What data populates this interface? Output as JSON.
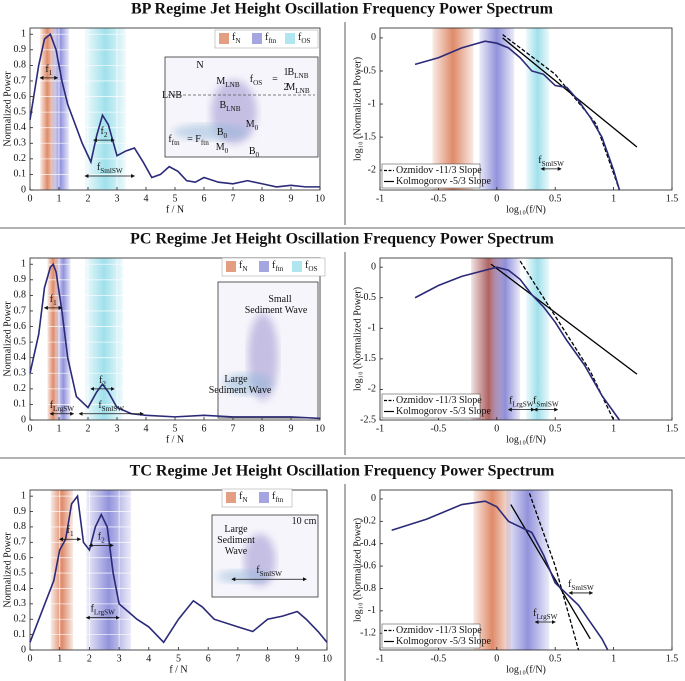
{
  "chart_data": [
    {
      "type": "line",
      "title": "BP Regime Jet Height Oscillation Frequency Power Spectrum",
      "xlabel": "f / N",
      "ylabel": "Normalized Power",
      "xlim": [
        0,
        10
      ],
      "ylim": [
        0,
        1.04
      ],
      "xticks": [
        0,
        1,
        2,
        3,
        4,
        5,
        6,
        7,
        8,
        9,
        10
      ],
      "yticks": [
        0,
        0.1,
        0.2,
        0.3,
        0.4,
        0.5,
        0.6,
        0.7,
        0.8,
        0.9,
        1
      ],
      "grid": true,
      "color": "#2b2a78",
      "x": [
        0,
        0.3,
        0.5,
        0.7,
        0.9,
        1.1,
        1.3,
        1.5,
        1.8,
        2.1,
        2.3,
        2.5,
        2.7,
        3.0,
        3.3,
        3.6,
        3.9,
        4.2,
        4.5,
        4.8,
        5.1,
        5.4,
        5.7,
        6,
        6.5,
        7,
        7.5,
        8,
        8.5,
        9,
        9.5,
        10
      ],
      "values": [
        0.45,
        0.8,
        0.97,
        1.0,
        0.9,
        0.7,
        0.55,
        0.45,
        0.3,
        0.18,
        0.35,
        0.48,
        0.42,
        0.22,
        0.25,
        0.27,
        0.18,
        0.08,
        0.1,
        0.15,
        0.12,
        0.06,
        0.05,
        0.08,
        0.05,
        0.04,
        0.06,
        0.04,
        0.02,
        0.03,
        0.02,
        0.02
      ],
      "bands": [
        {
          "label": "f",
          "sub": "N",
          "color": "#d9764f",
          "range": [
            0.35,
            0.85
          ]
        },
        {
          "label": "f",
          "sub": "ftn",
          "color": "#7f7fd6",
          "range": [
            0.75,
            1.35
          ]
        },
        {
          "label": "f",
          "sub": "OS",
          "color": "#8fdbe8",
          "range": [
            1.9,
            3.3
          ]
        }
      ],
      "annotations": [
        {
          "text": "f",
          "sub": "1",
          "range": [
            0.35,
            0.95
          ],
          "y": 0.72
        },
        {
          "text": "f",
          "sub": "2",
          "range": [
            2.2,
            2.9
          ],
          "y": 0.32
        },
        {
          "text": "f",
          "sub": "SmlSW",
          "range": [
            1.9,
            3.6
          ],
          "y": 0.09
        }
      ],
      "inset": [
        {
          "text": "N"
        },
        {
          "text": "LNB"
        },
        {
          "text": "M",
          "sub": "LNB"
        },
        {
          "text": "B",
          "sub": "LNB"
        },
        {
          "text": "f",
          "sub": "OS"
        },
        {
          "text": "="
        },
        {
          "text": "1"
        },
        {
          "text": "2"
        },
        {
          "text": "B",
          "sub": "LNB"
        },
        {
          "text": "M",
          "sub": "LNB"
        },
        {
          "text": "f",
          "sub": "ftn"
        },
        {
          "text": "= F",
          "sub": "ftn"
        },
        {
          "text": "B",
          "sub": "0"
        },
        {
          "text": "M",
          "sub": "0"
        },
        {
          "text": "M",
          "sub": "0"
        },
        {
          "text": "B",
          "sub": "0"
        }
      ]
    },
    {
      "type": "line",
      "xlabel": "log₁₀(f/N)",
      "ylabel": "log₁₀ (Normalized Power)",
      "xlim": [
        -1,
        1.5
      ],
      "ylim": [
        -2.3,
        0.15
      ],
      "xticks": [
        -1,
        -0.5,
        0,
        0.5,
        1,
        1.5
      ],
      "yticks": [
        -2,
        -1.5,
        -1,
        -0.5,
        0
      ],
      "grid": false,
      "color": "#2b2a78",
      "x": [
        -0.7,
        -0.5,
        -0.3,
        -0.1,
        0,
        0.1,
        0.2,
        0.3,
        0.4,
        0.5,
        0.6,
        0.7,
        0.8,
        0.9,
        1.0,
        1.05
      ],
      "values": [
        -0.4,
        -0.3,
        -0.15,
        -0.05,
        -0.08,
        -0.15,
        -0.3,
        -0.5,
        -0.55,
        -0.72,
        -0.75,
        -0.95,
        -1.2,
        -1.5,
        -2.0,
        -2.3
      ],
      "bands": [
        {
          "color": "#d9764f",
          "range": [
            -0.55,
            -0.2
          ]
        },
        {
          "color": "#7f7fd6",
          "range": [
            -0.15,
            0.15
          ]
        },
        {
          "color": "#8fdbe8",
          "range": [
            0.25,
            0.45
          ]
        }
      ],
      "series": [
        {
          "name": "Ozmidov -11/3 Slope",
          "color": "#000000",
          "dash": true,
          "x": [
            0.05,
            0.5,
            0.85,
            1.05
          ],
          "values": [
            0.05,
            -0.55,
            -1.3,
            -2.3
          ]
        },
        {
          "name": "Kolmogorov -5/3 Slope",
          "color": "#000000",
          "dash": false,
          "x": [
            0.05,
            1.2
          ],
          "values": [
            0,
            -1.65
          ]
        }
      ],
      "legend": "lower left",
      "annotations": [
        {
          "text": "f",
          "sub": "SmlSW",
          "range": [
            0.38,
            0.55
          ],
          "y": -1.98
        }
      ]
    },
    {
      "type": "line",
      "title": "PC Regime Jet Height Oscillation Frequency Power Spectrum",
      "xlabel": "f / N",
      "ylabel": "Normalized Power",
      "xlim": [
        0,
        10
      ],
      "ylim": [
        0,
        1.04
      ],
      "xticks": [
        0,
        1,
        2,
        3,
        4,
        5,
        6,
        7,
        8,
        9,
        10
      ],
      "yticks": [
        0,
        0.1,
        0.2,
        0.3,
        0.4,
        0.5,
        0.6,
        0.7,
        0.8,
        0.9,
        1
      ],
      "grid": true,
      "color": "#2b2a78",
      "x": [
        0,
        0.3,
        0.5,
        0.7,
        0.8,
        0.9,
        1.1,
        1.3,
        1.6,
        2.0,
        2.3,
        2.5,
        2.7,
        3.0,
        3.5,
        4,
        5,
        6,
        7,
        8,
        9,
        10
      ],
      "values": [
        0.3,
        0.55,
        0.85,
        0.98,
        1.0,
        0.95,
        0.7,
        0.4,
        0.15,
        0.08,
        0.18,
        0.23,
        0.18,
        0.08,
        0.04,
        0.03,
        0.02,
        0.03,
        0.02,
        0.02,
        0.02,
        0.01
      ],
      "bands": [
        {
          "label": "f",
          "sub": "N",
          "color": "#d9764f",
          "range": [
            0.6,
            1.0
          ]
        },
        {
          "label": "f",
          "sub": "ftn",
          "color": "#7f7fd6",
          "range": [
            0.9,
            1.4
          ]
        },
        {
          "label": "f",
          "sub": "OS",
          "color": "#8fdbe8",
          "range": [
            1.9,
            3.2
          ]
        }
      ],
      "annotations": [
        {
          "text": "f",
          "sub": "1",
          "range": [
            0.5,
            1.1
          ],
          "y": 0.72
        },
        {
          "text": "f",
          "sub": "2",
          "range": [
            2.1,
            2.9
          ],
          "y": 0.2
        },
        {
          "text": "f",
          "sub": "LrgSW",
          "range": [
            0.7,
            1.5
          ],
          "y": 0.04
        },
        {
          "text": "f",
          "sub": "SmlSW",
          "range": [
            1.7,
            3.9
          ],
          "y": 0.04
        }
      ],
      "inset": [
        {
          "text": "Small"
        },
        {
          "text": "Sediment Wave"
        },
        {
          "text": "Large"
        },
        {
          "text": "Sediment Wave"
        }
      ]
    },
    {
      "type": "line",
      "xlabel": "log₁₀(f/N)",
      "ylabel": "log₁₀ (Normalized Power)",
      "xlim": [
        -1,
        1.5
      ],
      "ylim": [
        -2.5,
        0.15
      ],
      "xticks": [
        -1,
        -0.5,
        0,
        0.5,
        1,
        1.5
      ],
      "yticks": [
        -2.5,
        -2,
        -1.5,
        -1,
        -0.5,
        0
      ],
      "grid": false,
      "color": "#2b2a78",
      "x": [
        -0.7,
        -0.5,
        -0.3,
        -0.1,
        0,
        0.1,
        0.2,
        0.3,
        0.4,
        0.5,
        0.6,
        0.75,
        0.9,
        1.05
      ],
      "values": [
        -0.5,
        -0.3,
        -0.15,
        -0.05,
        0,
        -0.05,
        -0.2,
        -0.45,
        -0.65,
        -0.9,
        -1.2,
        -1.6,
        -2.1,
        -2.5
      ],
      "bands": [
        {
          "color": "#a04848",
          "range": [
            -0.22,
            0.08
          ]
        },
        {
          "color": "#7f7fd6",
          "range": [
            -0.05,
            0.2
          ]
        },
        {
          "color": "#8fdbe8",
          "range": [
            0.25,
            0.45
          ]
        }
      ],
      "series": [
        {
          "name": "Ozmidov -11/3 Slope",
          "color": "#000000",
          "dash": true,
          "x": [
            0.2,
            0.5,
            0.8,
            1.0
          ],
          "values": [
            0.1,
            -0.8,
            -1.7,
            -2.5
          ]
        },
        {
          "name": "Kolmogorov -5/3 Slope",
          "color": "#000000",
          "dash": false,
          "x": [
            -0.05,
            1.2
          ],
          "values": [
            0.05,
            -1.75
          ]
        }
      ],
      "legend": "lower left",
      "annotations": [
        {
          "text": "f",
          "sub": "LrgSW",
          "range": [
            0.1,
            0.32
          ],
          "y": -2.33
        },
        {
          "text": "f",
          "sub": "SmlSW",
          "range": [
            0.32,
            0.52
          ],
          "y": -2.33
        }
      ]
    },
    {
      "type": "line",
      "title": "TC Regime Jet Height Oscillation Frequency Power Spectrum",
      "xlabel": "f / N",
      "ylabel": "Normalized Power",
      "xlim": [
        0,
        10
      ],
      "ylim": [
        0,
        1.04
      ],
      "xticks": [
        0,
        1,
        2,
        3,
        4,
        5,
        6,
        7,
        8,
        9,
        10
      ],
      "yticks": [
        0,
        0.1,
        0.2,
        0.3,
        0.4,
        0.5,
        0.6,
        0.7,
        0.8,
        0.9,
        1
      ],
      "grid": true,
      "color": "#2b2a78",
      "x": [
        0,
        0.5,
        0.8,
        1.0,
        1.2,
        1.4,
        1.6,
        1.8,
        2.0,
        2.2,
        2.4,
        2.6,
        2.8,
        3.0,
        3.3,
        3.6,
        4,
        4.5,
        5,
        5.5,
        5.8,
        6.2,
        7,
        7.5,
        8,
        8.5,
        9,
        9.3,
        9.7,
        10
      ],
      "values": [
        0.05,
        0.3,
        0.45,
        0.65,
        0.72,
        0.95,
        1.0,
        0.7,
        0.65,
        0.8,
        0.88,
        0.8,
        0.5,
        0.3,
        0.25,
        0.2,
        0.15,
        0.05,
        0.2,
        0.32,
        0.28,
        0.2,
        0.15,
        0.12,
        0.2,
        0.22,
        0.25,
        0.2,
        0.12,
        0.05
      ],
      "bands": [
        {
          "label": "f",
          "sub": "N",
          "color": "#d9764f",
          "range": [
            0.7,
            1.45
          ]
        },
        {
          "label": "f",
          "sub": "ftn",
          "color": "#7f7fd6",
          "range": [
            1.9,
            3.4
          ]
        }
      ],
      "annotations": [
        {
          "text": "f",
          "sub": "1",
          "range": [
            1.0,
            1.7
          ],
          "y": 0.72
        },
        {
          "text": "f",
          "sub": "2",
          "range": [
            2.0,
            2.8
          ],
          "y": 0.68
        },
        {
          "text": "f",
          "sub": "LrgSW",
          "range": [
            1.9,
            3.0
          ],
          "y": 0.21
        },
        {
          "text": "f",
          "sub": "SmlSW",
          "range": [
            6.8,
            9.3
          ],
          "y": 0.46
        }
      ],
      "inset": [
        {
          "text": "Large"
        },
        {
          "text": "Sediment"
        },
        {
          "text": "Wave"
        },
        {
          "text": "10 cm"
        }
      ]
    },
    {
      "type": "line",
      "xlabel": "log₁₀(f/N)",
      "ylabel": "log₁₀ (Normalized Power)",
      "xlim": [
        -1,
        1.5
      ],
      "ylim": [
        -1.35,
        0.08
      ],
      "xticks": [
        -1,
        -0.5,
        0,
        0.5,
        1,
        1.5
      ],
      "yticks": [
        -1.2,
        -1,
        -0.8,
        -0.6,
        -0.4,
        -0.2,
        0
      ],
      "grid": false,
      "color": "#2b2a78",
      "x": [
        -0.9,
        -0.6,
        -0.3,
        -0.1,
        0,
        0.1,
        0.2,
        0.3,
        0.4,
        0.5,
        0.6,
        0.7,
        0.8,
        0.9,
        0.95
      ],
      "values": [
        -0.28,
        -0.18,
        -0.05,
        -0.02,
        -0.07,
        -0.2,
        -0.25,
        -0.3,
        -0.5,
        -0.75,
        -0.85,
        -0.95,
        -1.1,
        -1.25,
        -1.35
      ],
      "bands": [
        {
          "color": "#d9764f",
          "range": [
            -0.2,
            0.12
          ]
        },
        {
          "color": "#7f7fd6",
          "range": [
            0.08,
            0.45
          ]
        }
      ],
      "series": [
        {
          "name": "Ozmidov -11/3 Slope",
          "color": "#000000",
          "dash": true,
          "x": [
            0.28,
            0.5,
            0.7
          ],
          "values": [
            0.05,
            -0.6,
            -1.35
          ]
        },
        {
          "name": "Kolmogorov -5/3 Slope",
          "color": "#000000",
          "dash": false,
          "x": [
            0.12,
            0.8
          ],
          "values": [
            -0.05,
            -1.25
          ]
        }
      ],
      "legend": "lower left",
      "annotations": [
        {
          "text": "f",
          "sub": "SmlSW",
          "range": [
            0.62,
            0.82
          ],
          "y": -0.84
        },
        {
          "text": "f",
          "sub": "LrgSW",
          "range": [
            0.33,
            0.5
          ],
          "y": -1.1
        }
      ]
    }
  ]
}
